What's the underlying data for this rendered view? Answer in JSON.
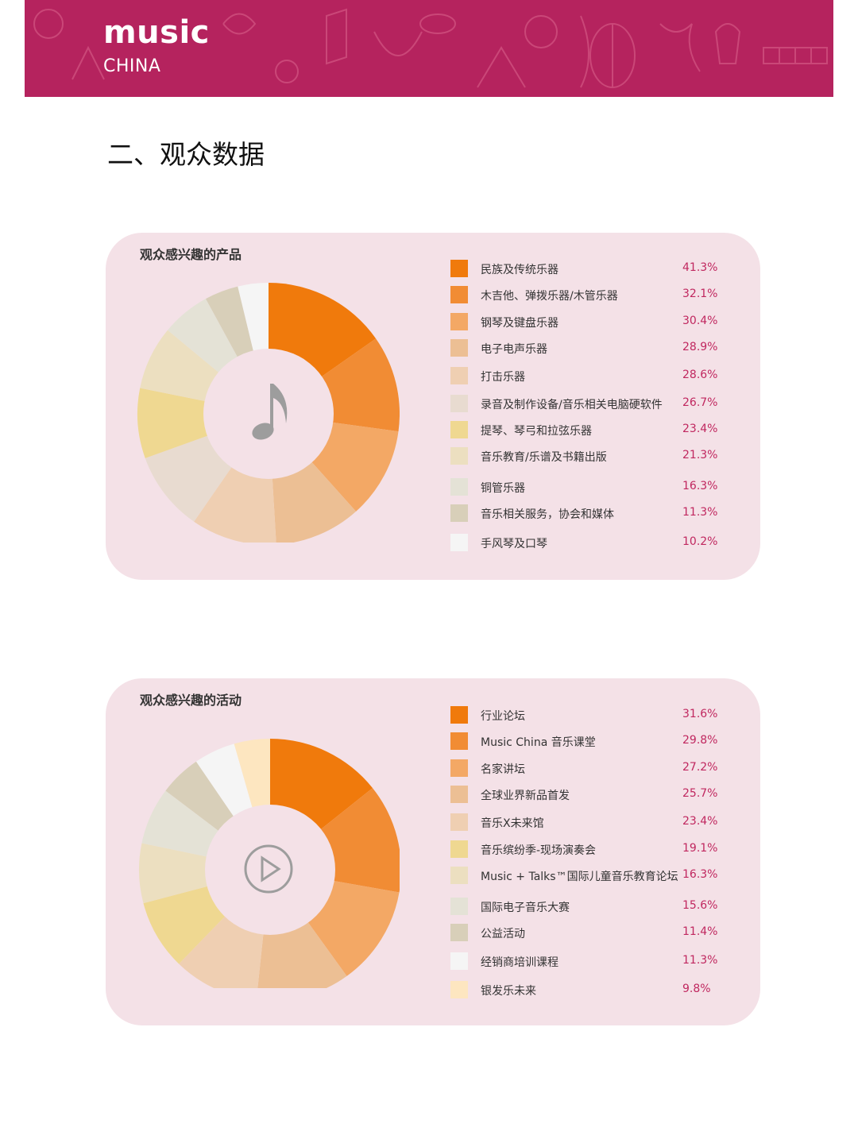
{
  "header": {
    "brand": "music",
    "sub": "CHINA"
  },
  "section_title": "二、观众数据",
  "colors": {
    "banner": "#b5235e",
    "card_bg": "#f4e1e7",
    "value_text": "#c0275f",
    "palette": [
      "#f07a0c",
      "#f18c34",
      "#f3a865",
      "#ecbf94",
      "#efcfb2",
      "#e8dbd0",
      "#efd891",
      "#ecdfc0",
      "#e4e2d6",
      "#d8cfb9",
      "#f5f5f5"
    ],
    "palette2": [
      "#f07a0c",
      "#f18c34",
      "#f3a865",
      "#ecbf94",
      "#efcfb2",
      "#efd891",
      "#ecdfc0",
      "#e4e2d6",
      "#d8cfb9",
      "#f5f5f5",
      "#fde6c0"
    ]
  },
  "chart_data": [
    {
      "type": "pie",
      "title": "观众感兴趣的产品",
      "center_icon": "music-note-icon",
      "categories": [
        "民族及传统乐器",
        "木吉他、弹拨乐器/木管乐器",
        "钢琴及键盘乐器",
        "电子电声乐器",
        "打击乐器",
        "录音及制作设备/音乐相关电脑硬软件",
        "提琴、琴弓和拉弦乐器",
        "音乐教育/乐谱及书籍出版",
        "铜管乐器",
        "音乐相关服务，协会和媒体",
        "手风琴及口琴"
      ],
      "values": [
        41.3,
        32.1,
        30.4,
        28.9,
        28.6,
        26.7,
        23.4,
        21.3,
        16.3,
        11.3,
        10.2
      ],
      "labels": [
        "41.3%",
        "32.1%",
        "30.4%",
        "28.9%",
        "28.6%",
        "26.7%",
        "23.4%",
        "21.3%",
        "16.3%",
        "11.3%",
        "10.2%"
      ]
    },
    {
      "type": "pie",
      "title": "观众感兴趣的活动",
      "center_icon": "play-icon",
      "categories": [
        "行业论坛",
        "Music China 音乐课堂",
        "名家讲坛",
        "全球业界新品首发",
        "音乐X未来馆",
        "音乐缤纷季-现场演奏会",
        "Music + Talks™国际儿童音乐教育论坛",
        "国际电子音乐大赛",
        "公益活动",
        "经销商培训课程",
        "银发乐未来"
      ],
      "values": [
        31.6,
        29.8,
        27.2,
        25.7,
        23.4,
        19.1,
        16.3,
        15.6,
        11.4,
        11.3,
        9.8
      ],
      "labels": [
        "31.6%",
        "29.8%",
        "27.2%",
        "25.7%",
        "23.4%",
        "19.1%",
        "16.3%",
        "15.6%",
        "11.4%",
        "11.3%",
        "9.8%"
      ]
    }
  ]
}
